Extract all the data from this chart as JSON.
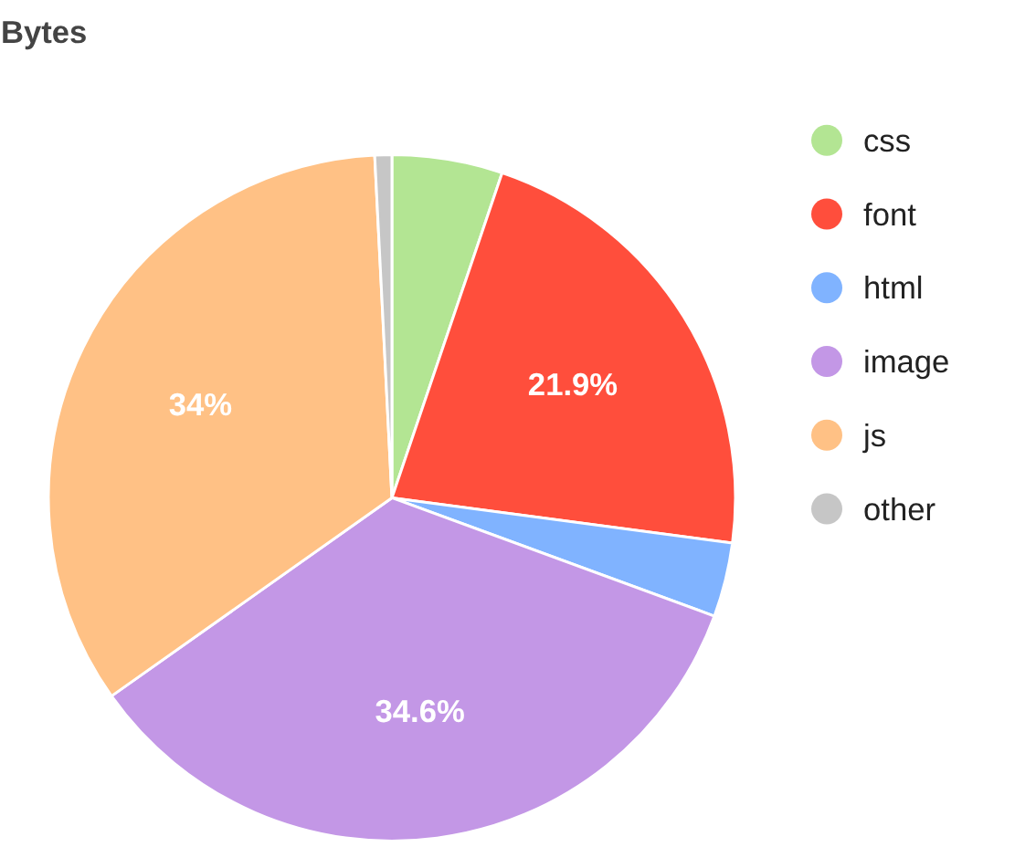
{
  "chart_data": {
    "type": "pie",
    "title": "Bytes",
    "categories": [
      "css",
      "font",
      "html",
      "image",
      "js",
      "other"
    ],
    "values": [
      5.2,
      21.9,
      3.5,
      34.6,
      34,
      0.8
    ],
    "value_labels": [
      null,
      "21.9%",
      null,
      "34.6%",
      "34%",
      null
    ],
    "colors": [
      "#b3e593",
      "#ff4e3c",
      "#80b3ff",
      "#c397e6",
      "#ffc185",
      "#c6c6c6"
    ],
    "legend": "right"
  }
}
